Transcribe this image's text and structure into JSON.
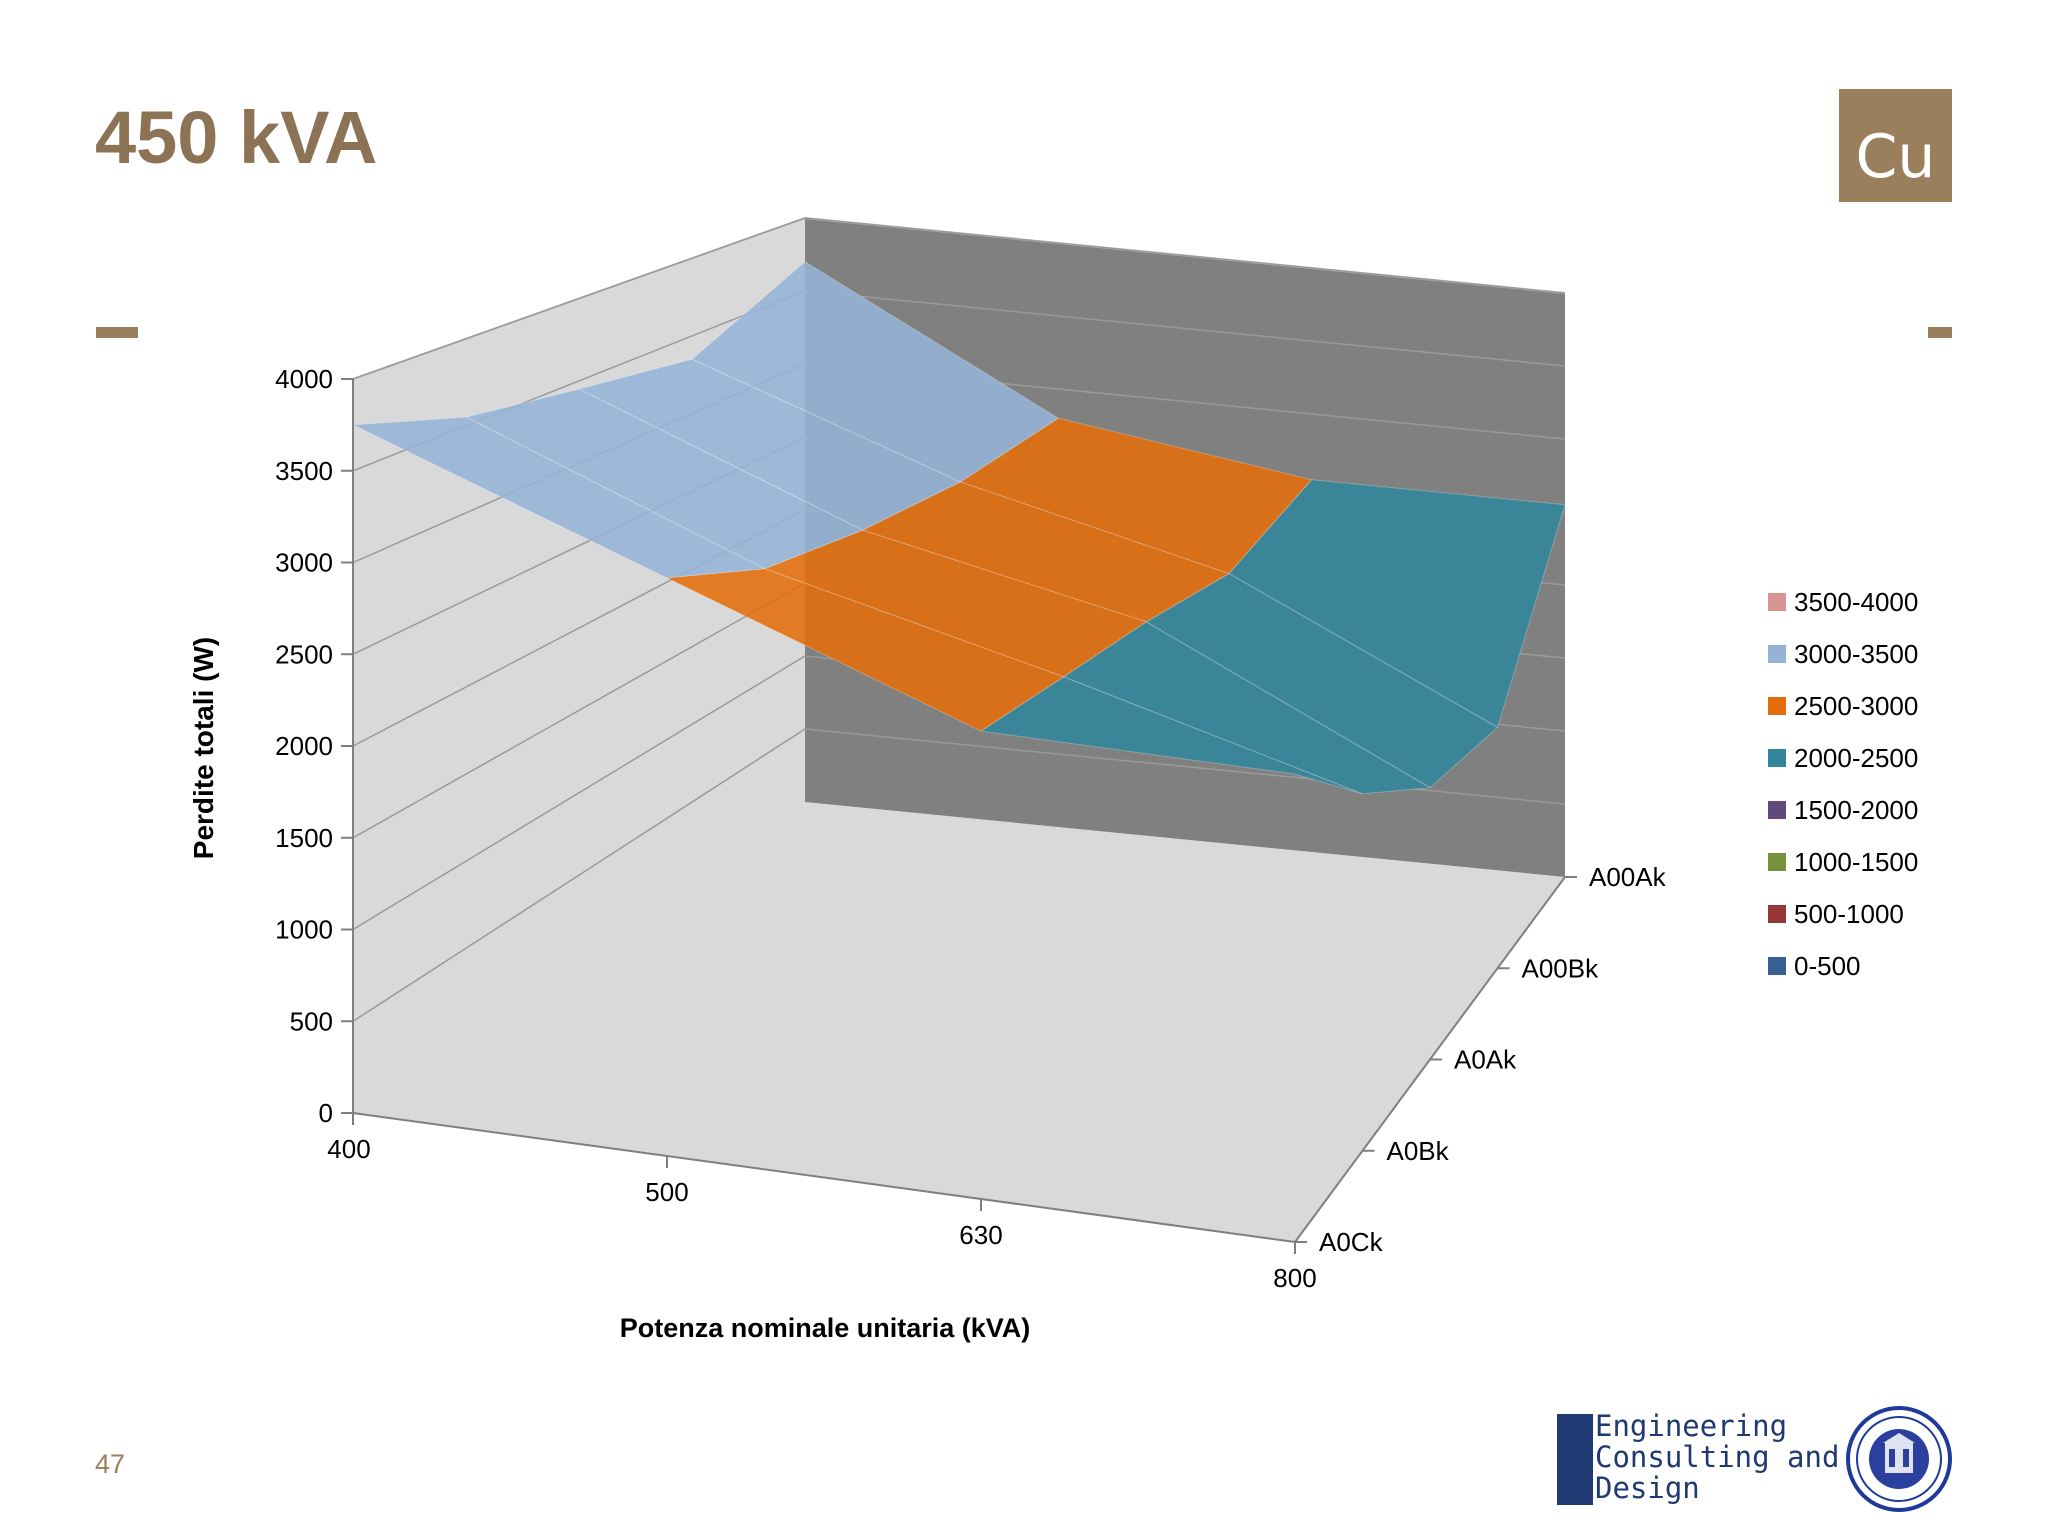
{
  "slide": {
    "title": "450 kVA",
    "badge": "Cu",
    "page_number": "47",
    "accent_color": "#9A7F5C"
  },
  "logo": {
    "line1": "Engineering",
    "line2": "Consulting and",
    "line3": "Design"
  },
  "chart_data": {
    "type": "surface",
    "ylabel": "Perdite totali (W)",
    "xlabel": "Potenza nominale  unitaria (kVA)",
    "zlim": [
      0,
      4000
    ],
    "z_ticks": [
      "0",
      "500",
      "1000",
      "1500",
      "2000",
      "2500",
      "3000",
      "3500",
      "4000"
    ],
    "categories": [
      "400",
      "500",
      "630",
      "800"
    ],
    "depth_categories": [
      "A0Ck",
      "A0Bk",
      "A0Ak",
      "A00Bk",
      "A00Ak"
    ],
    "grid": true,
    "legend_position": "right",
    "series": [
      {
        "name": "A0Ck",
        "values": [
          3750,
          3150,
          2550,
          2550
        ]
      },
      {
        "name": "A0Bk",
        "values": [
          3550,
          2900,
          2500,
          2050
        ]
      },
      {
        "name": "A0Ak",
        "values": [
          3450,
          2800,
          2450,
          1650
        ]
      },
      {
        "name": "A00Bk",
        "values": [
          3350,
          2750,
          2350,
          1550
        ]
      },
      {
        "name": "A00Ak",
        "values": [
          3700,
          2800,
          2550,
          2550
        ]
      }
    ],
    "legend": [
      {
        "label": "3500-4000",
        "color": "#D99594"
      },
      {
        "label": "3000-3500",
        "color": "#95B3D7"
      },
      {
        "label": "2500-3000",
        "color": "#E46C0A"
      },
      {
        "label": "2000-2500",
        "color": "#31859C"
      },
      {
        "label": "1500-2000",
        "color": "#604A7B"
      },
      {
        "label": "1000-1500",
        "color": "#76923C"
      },
      {
        "label": "500-1000",
        "color": "#953735"
      },
      {
        "label": "0-500",
        "color": "#366092"
      }
    ]
  }
}
